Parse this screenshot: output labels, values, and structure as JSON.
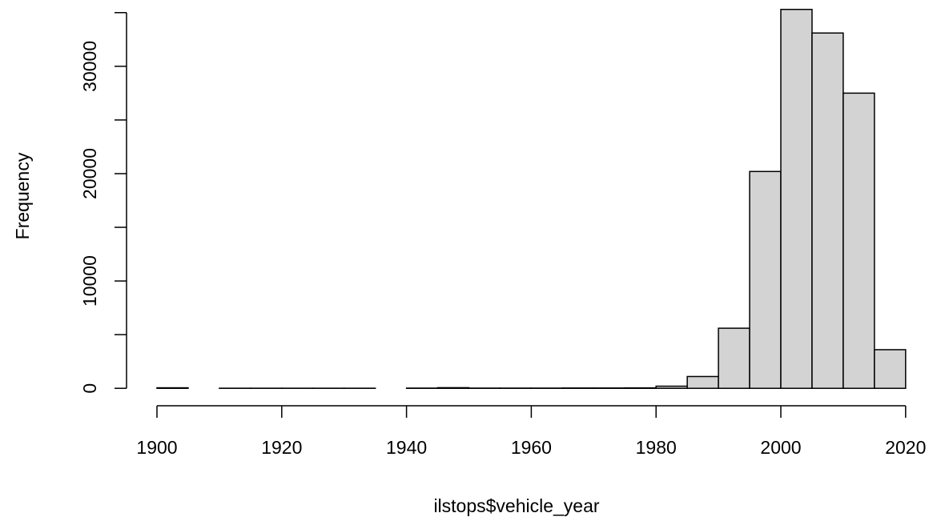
{
  "chart_data": {
    "type": "histogram",
    "x_label": "ilstops$vehicle_year",
    "y_label": "Frequency",
    "bins": [
      1900,
      1905,
      1910,
      1915,
      1920,
      1925,
      1930,
      1935,
      1940,
      1945,
      1950,
      1955,
      1960,
      1965,
      1970,
      1975,
      1980,
      1985,
      1990,
      1995,
      2000,
      2005,
      2010,
      2015,
      2020
    ],
    "values": [
      50,
      0,
      10,
      10,
      10,
      10,
      10,
      0,
      20,
      60,
      20,
      20,
      20,
      30,
      30,
      40,
      200,
      1100,
      5600,
      20200,
      35300,
      33100,
      27500,
      3600
    ],
    "color": "#d3d3d3",
    "xlim": [
      1895.2,
      2024.8
    ],
    "ylim": [
      -1400,
      36400
    ],
    "xticks": [
      1900,
      1920,
      1940,
      1960,
      1980,
      2000,
      2020
    ],
    "yticks": [
      0,
      10000,
      20000,
      30000
    ],
    "yminorticks": [
      5000,
      15000,
      25000,
      35000
    ]
  }
}
